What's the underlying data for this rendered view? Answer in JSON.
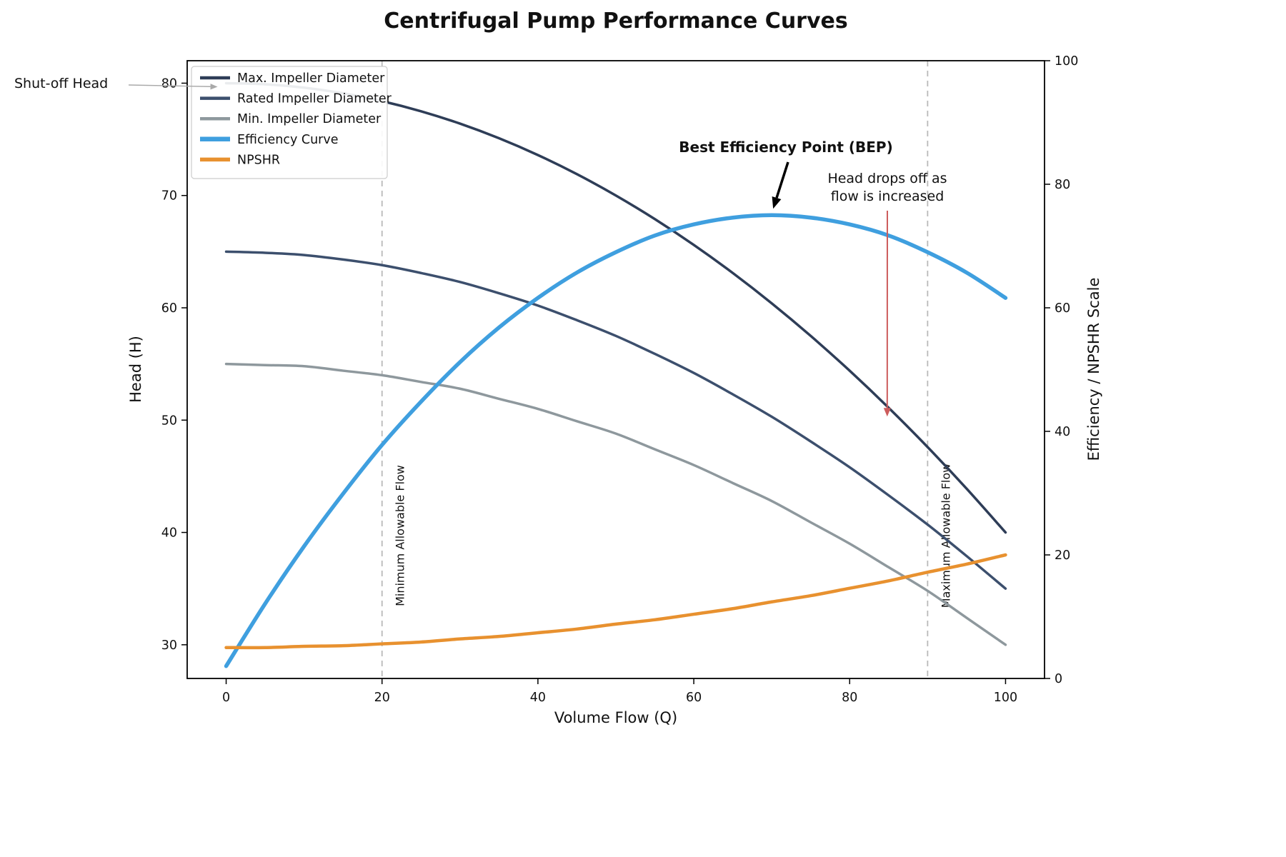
{
  "chart_data": {
    "type": "line",
    "title": "Centrifugal Pump Performance Curves",
    "xlabel": "Volume Flow (Q)",
    "ylabel_left": "Head (H)",
    "ylabel_right": "Efficiency / NPSHR Scale",
    "xlim": [
      -5,
      105
    ],
    "ylim_left": [
      27,
      82
    ],
    "ylim_right": [
      0,
      100
    ],
    "xticks": [
      0,
      20,
      40,
      60,
      80,
      100
    ],
    "yticks_left": [
      30,
      40,
      50,
      60,
      70,
      80
    ],
    "yticks_right": [
      0,
      20,
      40,
      60,
      80,
      100
    ],
    "grid": false,
    "legend_position": "upper-left",
    "x": [
      0,
      5,
      10,
      15,
      20,
      25,
      30,
      35,
      40,
      45,
      50,
      55,
      60,
      65,
      70,
      75,
      80,
      85,
      90,
      95,
      100
    ],
    "series": [
      {
        "name": "Max. Impeller Diameter",
        "axis": "left",
        "color": "#2e3d57",
        "width": 3.5,
        "values": [
          80,
          79.9,
          79.6,
          79.1,
          78.4,
          77.5,
          76.4,
          75.1,
          73.6,
          71.9,
          70,
          67.9,
          65.6,
          63.1,
          60.4,
          57.5,
          54.4,
          51.1,
          47.6,
          43.9,
          40
        ]
      },
      {
        "name": "Rated Impeller Diameter",
        "axis": "left",
        "color": "#3c4f6d",
        "width": 3.5,
        "values": [
          65,
          64.9,
          64.7,
          64.3,
          63.8,
          63.1,
          62.3,
          61.3,
          60.2,
          58.9,
          57.5,
          55.9,
          54.2,
          52.3,
          50.3,
          48.1,
          45.8,
          43.3,
          40.7,
          37.9,
          35
        ]
      },
      {
        "name": "Min. Impeller Diameter",
        "axis": "left",
        "color": "#8e989d",
        "width": 3.5,
        "values": [
          55,
          54.9,
          54.8,
          54.4,
          54,
          53.4,
          52.8,
          51.9,
          51,
          49.9,
          48.8,
          47.4,
          46,
          44.4,
          42.8,
          40.9,
          39,
          36.9,
          34.8,
          32.4,
          30
        ]
      },
      {
        "name": "Efficiency Curve",
        "axis": "right",
        "color": "#3f9fdf",
        "width": 5.5,
        "values": [
          2,
          12.1,
          21.4,
          29.9,
          37.8,
          44.8,
          51.2,
          56.8,
          61.6,
          65.7,
          69,
          71.7,
          73.5,
          74.6,
          75,
          74.6,
          73.5,
          71.7,
          69,
          65.7,
          61.6
        ]
      },
      {
        "name": "NPSHR",
        "axis": "right",
        "color": "#e8912f",
        "width": 4.5,
        "values": [
          5,
          5,
          5.2,
          5.3,
          5.6,
          5.9,
          6.4,
          6.8,
          7.4,
          8,
          8.8,
          9.5,
          10.4,
          11.3,
          12.4,
          13.4,
          14.6,
          15.8,
          17.2,
          18.5,
          20
        ]
      }
    ],
    "vlines": [
      {
        "x": 20,
        "label": "Minimum Allowable Flow"
      },
      {
        "x": 90,
        "label": "Maximum Allowable Flow"
      }
    ],
    "annotations": [
      {
        "id": "shutoff-head",
        "text": "Shut-off Head",
        "color": "#000000",
        "arrow_color": "#a9a9a9",
        "target": {
          "x": 0,
          "y": 80,
          "axis": "left"
        }
      },
      {
        "id": "bep",
        "text": "Best Efficiency Point (BEP)",
        "bold": true,
        "color": "#000000",
        "arrow_color": "#000000",
        "target": {
          "x": 70,
          "y": 75,
          "axis": "right"
        }
      },
      {
        "id": "head-drop",
        "text": "Head drops off as\nflow is increased",
        "color": "#cd5c5c",
        "arrow_color": "#cd5c5c",
        "target": {
          "x": 85,
          "y": 50,
          "axis": "left"
        }
      }
    ]
  }
}
